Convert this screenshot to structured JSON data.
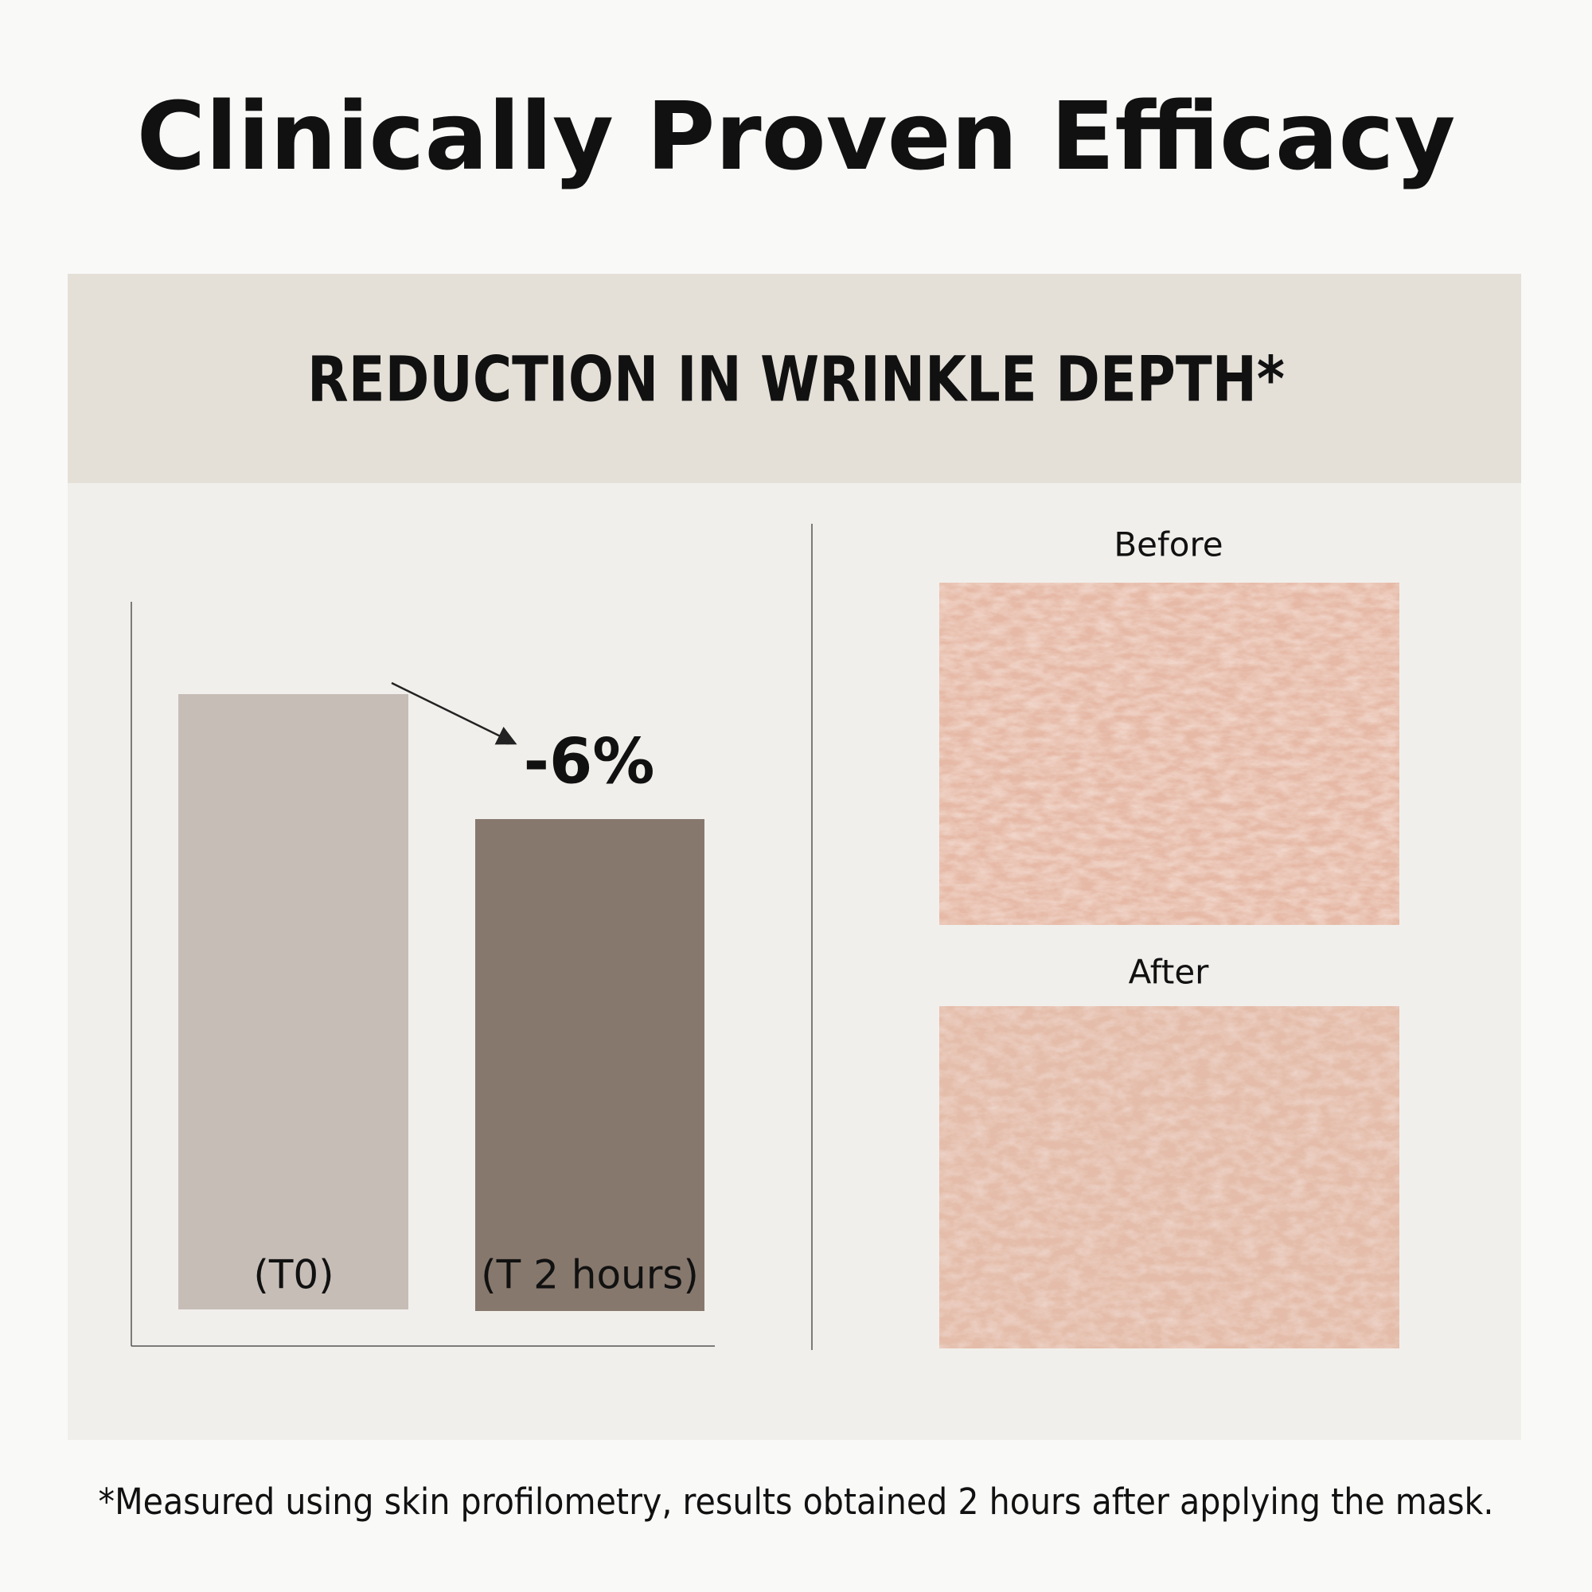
{
  "title": "Clinically Proven Efficacy",
  "panel": {
    "heading": "REDUCTION IN WRINKLE DEPTH*",
    "chart": {
      "categories": [
        "(T0)",
        "(T 2 hours)"
      ],
      "change_label": "-6%"
    },
    "photos": {
      "before": "Before",
      "after": "After"
    }
  },
  "footnote": "*Measured using skin profilometry, results obtained 2 hours after applying the mask."
}
